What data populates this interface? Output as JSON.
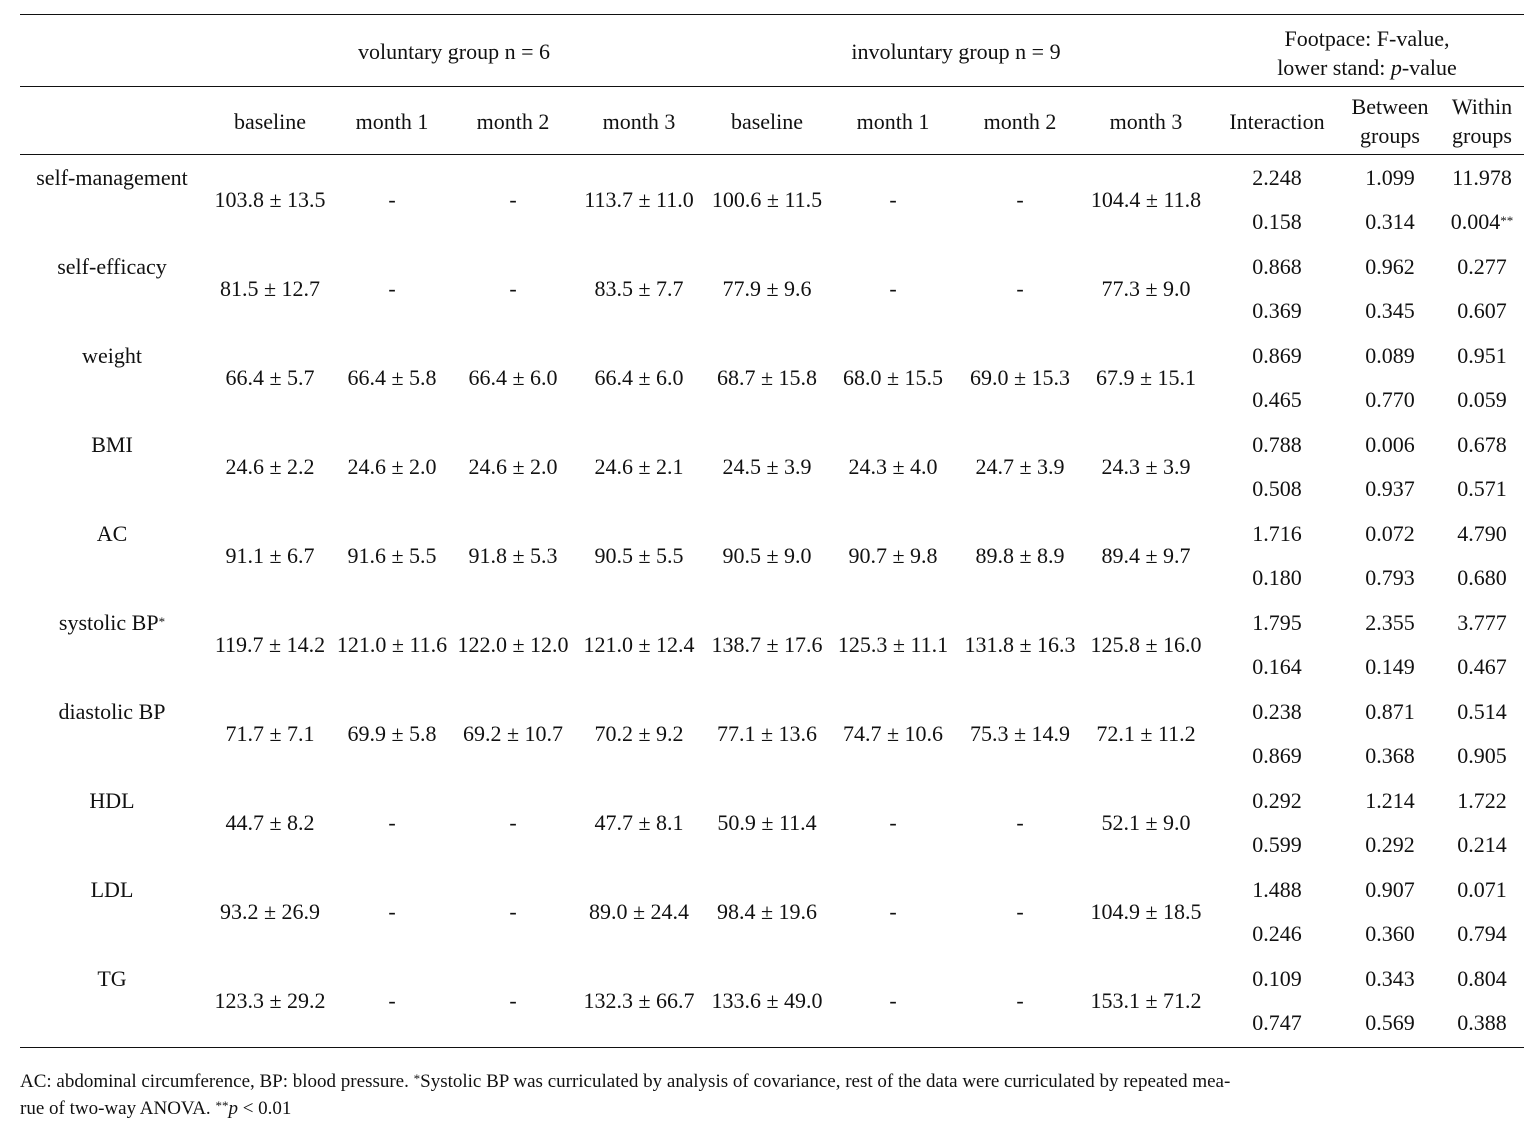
{
  "table": {
    "header": {
      "voluntary_group": "voluntary group n = 6",
      "involuntary_group": "involuntary group n = 9",
      "stats_header_line1": "Footpace: F-value,",
      "stats_header_line2_prefix": "lower stand: ",
      "stats_header_line2_italic": "p",
      "stats_header_line2_suffix": "-value",
      "timepoints": [
        "baseline",
        "month 1",
        "month 2",
        "month 3"
      ],
      "interaction": "Interaction",
      "between_line1": "Between",
      "between_line2": "groups",
      "within_line1": "Within",
      "within_line2": "groups"
    },
    "rows": [
      {
        "label": "self-management",
        "label_sup": "",
        "vol": [
          "103.8 ± 13.5",
          "-",
          "-",
          "113.7 ± 11.0"
        ],
        "invol": [
          "100.6 ± 11.5",
          "-",
          "-",
          "104.4 ± 11.8"
        ],
        "f": [
          "2.248",
          "1.099",
          "11.978"
        ],
        "p": [
          "0.158",
          "0.314",
          "0.004"
        ],
        "p_sup": [
          "",
          "",
          "**"
        ]
      },
      {
        "label": "self-efficacy",
        "label_sup": "",
        "vol": [
          "81.5 ± 12.7",
          "-",
          "-",
          "83.5 ± 7.7"
        ],
        "invol": [
          "77.9 ± 9.6",
          "-",
          "-",
          "77.3 ± 9.0"
        ],
        "f": [
          "0.868",
          "0.962",
          "0.277"
        ],
        "p": [
          "0.369",
          "0.345",
          "0.607"
        ],
        "p_sup": [
          "",
          "",
          ""
        ]
      },
      {
        "label": "weight",
        "label_sup": "",
        "vol": [
          "66.4 ± 5.7",
          "66.4 ± 5.8",
          "66.4 ± 6.0",
          "66.4 ± 6.0"
        ],
        "invol": [
          "68.7 ± 15.8",
          "68.0 ± 15.5",
          "69.0 ± 15.3",
          "67.9 ± 15.1"
        ],
        "f": [
          "0.869",
          "0.089",
          "0.951"
        ],
        "p": [
          "0.465",
          "0.770",
          "0.059"
        ],
        "p_sup": [
          "",
          "",
          ""
        ]
      },
      {
        "label": "BMI",
        "label_sup": "",
        "vol": [
          "24.6 ± 2.2",
          "24.6 ± 2.0",
          "24.6 ± 2.0",
          "24.6 ± 2.1"
        ],
        "invol": [
          "24.5 ± 3.9",
          "24.3 ± 4.0",
          "24.7 ± 3.9",
          "24.3 ± 3.9"
        ],
        "f": [
          "0.788",
          "0.006",
          "0.678"
        ],
        "p": [
          "0.508",
          "0.937",
          "0.571"
        ],
        "p_sup": [
          "",
          "",
          ""
        ]
      },
      {
        "label": "AC",
        "label_sup": "",
        "vol": [
          "91.1 ± 6.7",
          "91.6 ± 5.5",
          "91.8 ± 5.3",
          "90.5 ± 5.5"
        ],
        "invol": [
          "90.5 ± 9.0",
          "90.7 ± 9.8",
          "89.8 ± 8.9",
          "89.4 ± 9.7"
        ],
        "f": [
          "1.716",
          "0.072",
          "4.790"
        ],
        "p": [
          "0.180",
          "0.793",
          "0.680"
        ],
        "p_sup": [
          "",
          "",
          ""
        ]
      },
      {
        "label": "systolic BP",
        "label_sup": "*",
        "vol": [
          "119.7 ± 14.2",
          "121.0 ± 11.6",
          "122.0 ± 12.0",
          "121.0 ± 12.4"
        ],
        "invol": [
          "138.7 ± 17.6",
          "125.3 ± 11.1",
          "131.8 ± 16.3",
          "125.8 ± 16.0"
        ],
        "f": [
          "1.795",
          "2.355",
          "3.777"
        ],
        "p": [
          "0.164",
          "0.149",
          "0.467"
        ],
        "p_sup": [
          "",
          "",
          ""
        ]
      },
      {
        "label": "diastolic BP",
        "label_sup": "",
        "vol": [
          "71.7 ± 7.1",
          "69.9 ± 5.8",
          "69.2 ± 10.7",
          "70.2 ± 9.2"
        ],
        "invol": [
          "77.1 ± 13.6",
          "74.7 ± 10.6",
          "75.3 ± 14.9",
          "72.1 ± 11.2"
        ],
        "f": [
          "0.238",
          "0.871",
          "0.514"
        ],
        "p": [
          "0.869",
          "0.368",
          "0.905"
        ],
        "p_sup": [
          "",
          "",
          ""
        ]
      },
      {
        "label": "HDL",
        "label_sup": "",
        "vol": [
          "44.7 ± 8.2",
          "-",
          "-",
          "47.7 ± 8.1"
        ],
        "invol": [
          "50.9 ± 11.4",
          "-",
          "-",
          "52.1 ± 9.0"
        ],
        "f": [
          "0.292",
          "1.214",
          "1.722"
        ],
        "p": [
          "0.599",
          "0.292",
          "0.214"
        ],
        "p_sup": [
          "",
          "",
          ""
        ]
      },
      {
        "label": "LDL",
        "label_sup": "",
        "vol": [
          "93.2 ± 26.9",
          "-",
          "-",
          "89.0 ± 24.4"
        ],
        "invol": [
          "98.4 ± 19.6",
          "-",
          "-",
          "104.9 ± 18.5"
        ],
        "f": [
          "1.488",
          "0.907",
          "0.071"
        ],
        "p": [
          "0.246",
          "0.360",
          "0.794"
        ],
        "p_sup": [
          "",
          "",
          ""
        ]
      },
      {
        "label": "TG",
        "label_sup": "",
        "vol": [
          "123.3 ± 29.2",
          "-",
          "-",
          "132.3 ± 66.7"
        ],
        "invol": [
          "133.6 ± 49.0",
          "-",
          "-",
          "153.1 ± 71.2"
        ],
        "f": [
          "0.109",
          "0.343",
          "0.804"
        ],
        "p": [
          "0.747",
          "0.569",
          "0.388"
        ],
        "p_sup": [
          "",
          "",
          ""
        ]
      }
    ]
  },
  "footnote": {
    "part1": "AC: abdominal circumference, BP: blood pressure. ",
    "sup1": "*",
    "part2": "Systolic BP was curriculated by analysis of covariance, rest of the data were curriculated by repeated mea-",
    "part3": "rue of two-way ANOVA. ",
    "sup2": "**",
    "italic_p": "p",
    "part4": " < 0.01"
  }
}
